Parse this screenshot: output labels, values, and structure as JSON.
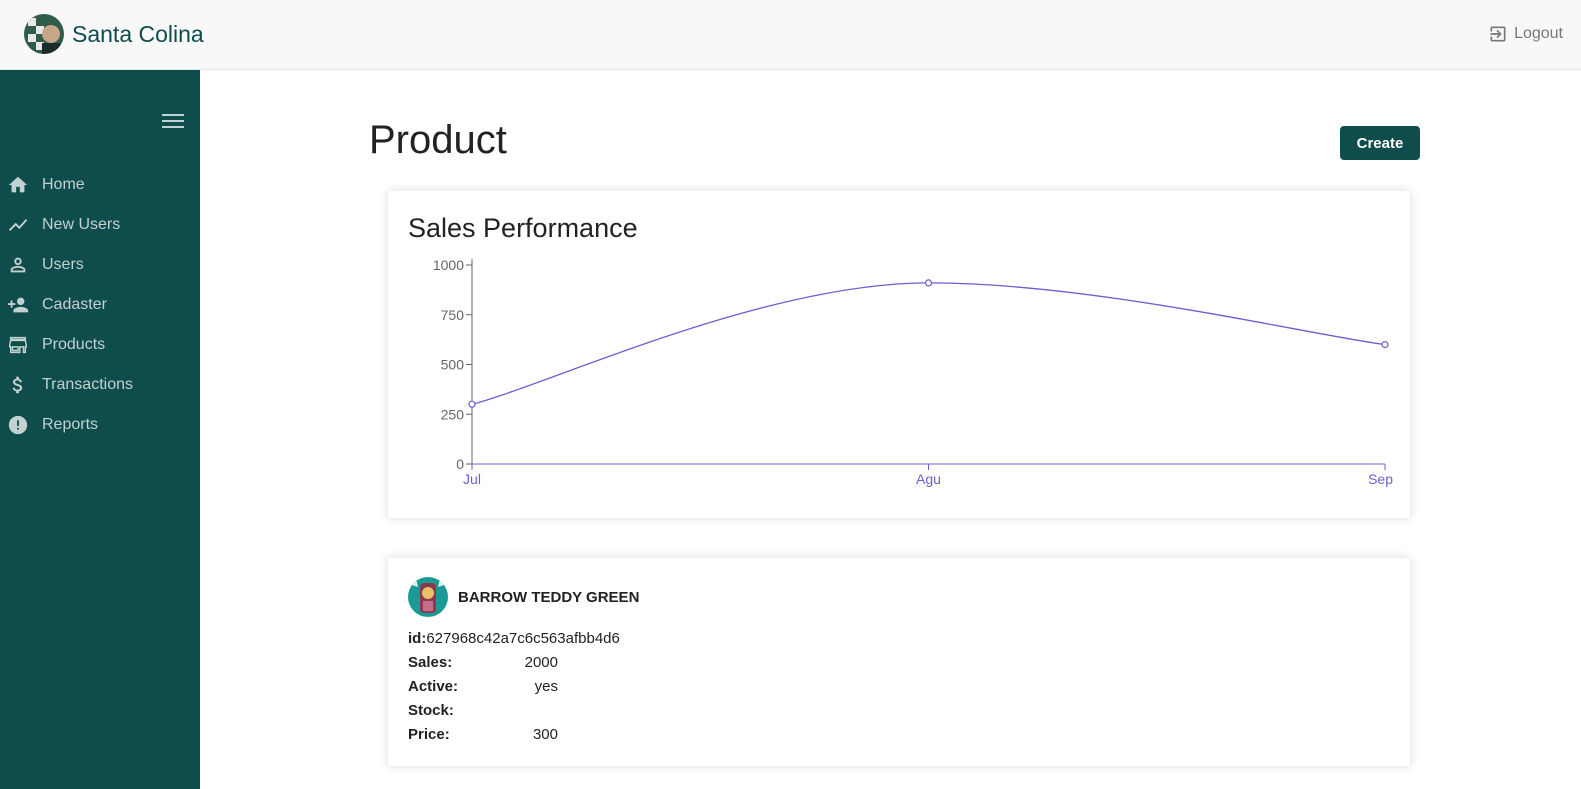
{
  "header": {
    "brand_name": "Santa Colina",
    "logout_label": "Logout"
  },
  "sidebar": {
    "items": [
      {
        "label": "Home",
        "icon": "home-icon"
      },
      {
        "label": "New Users",
        "icon": "trending-icon"
      },
      {
        "label": "Users",
        "icon": "person-icon"
      },
      {
        "label": "Cadaster",
        "icon": "person-add-icon"
      },
      {
        "label": "Products",
        "icon": "store-icon"
      },
      {
        "label": "Transactions",
        "icon": "dollar-icon"
      },
      {
        "label": "Reports",
        "icon": "alert-icon"
      }
    ]
  },
  "page": {
    "title": "Product",
    "create_label": "Create"
  },
  "chart_data": {
    "type": "line",
    "title": "Sales Performance",
    "categories": [
      "Jul",
      "Agu",
      "Sep"
    ],
    "series": [
      {
        "values": [
          300,
          910,
          600
        ]
      }
    ],
    "ylim": [
      0,
      1000
    ],
    "yticks": [
      0,
      250,
      500,
      750,
      1000
    ],
    "xlabel": "",
    "ylabel": "",
    "grid": false,
    "color": "#6c5fd2"
  },
  "product": {
    "name": "BARROW TEDDY GREEN",
    "id_label": "id:",
    "id_value": "627968c42a7c6c563afbb4d6",
    "rows": [
      {
        "key": "Sales:",
        "value": "2000"
      },
      {
        "key": "Active:",
        "value": "yes"
      },
      {
        "key": "Stock:",
        "value": ""
      },
      {
        "key": "Price:",
        "value": "300"
      }
    ]
  }
}
